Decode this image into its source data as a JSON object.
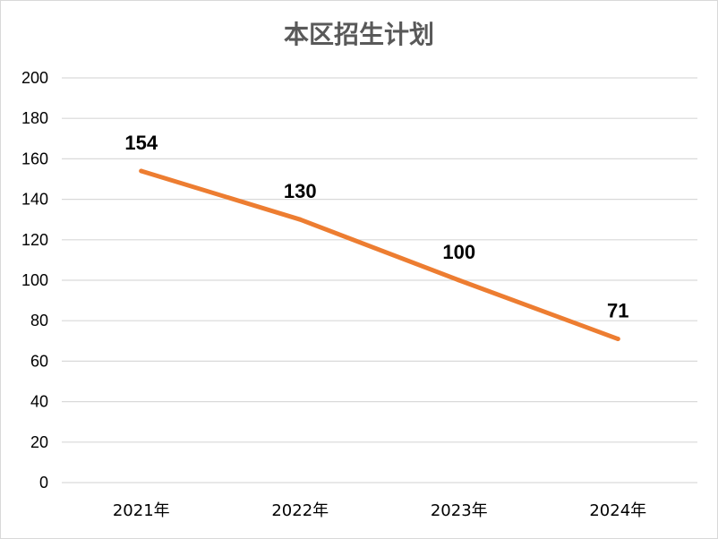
{
  "chart_data": {
    "type": "line",
    "title": "本区招生计划",
    "categories": [
      "2021年",
      "2022年",
      "2023年",
      "2024年"
    ],
    "series": [
      {
        "values": [
          154,
          130,
          100,
          71
        ],
        "color": "#ED7D31"
      }
    ],
    "data_labels": [
      "154",
      "130",
      "100",
      "71"
    ],
    "ylim": [
      0,
      200
    ],
    "yticks": [
      "0",
      "20",
      "40",
      "60",
      "80",
      "100",
      "120",
      "140",
      "160",
      "180",
      "200"
    ],
    "grid": true,
    "legend": "none",
    "gridline_color": "#d9d9d9"
  }
}
